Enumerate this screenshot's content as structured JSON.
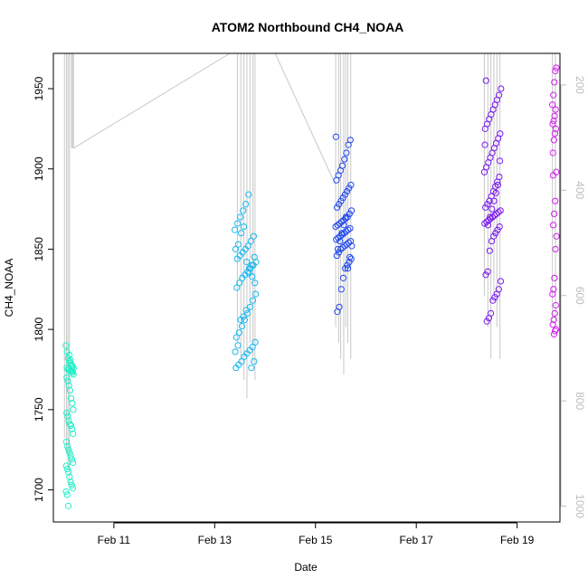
{
  "chart_data": {
    "type": "scatter",
    "title": "ATOM2 Northbound CH4_NOAA",
    "xlabel": "Date",
    "ylabel": "CH4_NOAA",
    "x_units": "days since Feb 10",
    "xlim": [
      9.8,
      19.85
    ],
    "ylim": [
      1680,
      1972
    ],
    "right_axis_lim": [
      1030,
      140
    ],
    "x_ticks": [
      {
        "label": "Feb 11",
        "value": 11
      },
      {
        "label": "Feb 13",
        "value": 13
      },
      {
        "label": "Feb 15",
        "value": 15
      },
      {
        "label": "Feb 17",
        "value": 17
      },
      {
        "label": "Feb 19",
        "value": 19
      }
    ],
    "y_ticks": [
      1700,
      1750,
      1800,
      1850,
      1900,
      1950
    ],
    "right_ticks": [
      1000,
      800,
      600,
      400,
      200
    ],
    "right_axis_color": "#bdbdbd",
    "grid": false,
    "legend": "none",
    "altitude_line_color": "#c8c8c8",
    "series": [
      {
        "color": "#1ef0c8",
        "x_range": [
          10.05,
          10.2
        ],
        "values": [
          1790,
          1786,
          1782,
          1780,
          1779,
          1778,
          1777,
          1776,
          1776,
          1775,
          1775,
          1774,
          1774,
          1773,
          1772,
          1770,
          1768,
          1765,
          1762,
          1757,
          1754,
          1750,
          1748,
          1746,
          1743,
          1741,
          1740,
          1738,
          1735,
          1730,
          1727,
          1725,
          1723,
          1721,
          1719,
          1717,
          1715,
          1713,
          1711,
          1708,
          1705,
          1703,
          1701,
          1699,
          1697,
          1690,
          1784,
          1781,
          1777,
          1774
        ]
      },
      {
        "color": "#18b8f0",
        "x_range": [
          13.4,
          13.82
        ],
        "values": [
          1776,
          1778,
          1780,
          1783,
          1785,
          1787,
          1789,
          1792,
          1795,
          1798,
          1802,
          1806,
          1810,
          1814,
          1818,
          1822,
          1826,
          1829,
          1832,
          1834,
          1836,
          1838,
          1840,
          1842,
          1844,
          1846,
          1848,
          1850,
          1852,
          1855,
          1858,
          1862,
          1866,
          1870,
          1874,
          1878,
          1884,
          1776,
          1780,
          1786,
          1790,
          1806,
          1808,
          1812,
          1835,
          1840,
          1845,
          1850,
          1853,
          1860,
          1864,
          1842,
          1838,
          1833,
          1829
        ]
      },
      {
        "color": "#2048f0",
        "x_range": [
          15.4,
          15.72
        ],
        "values": [
          1811,
          1814,
          1825,
          1832,
          1838,
          1840,
          1842,
          1844,
          1846,
          1848,
          1850,
          1851,
          1852,
          1853,
          1854,
          1855,
          1856,
          1857,
          1858,
          1859,
          1860,
          1861,
          1862,
          1863,
          1864,
          1865,
          1866,
          1867,
          1868,
          1869,
          1870,
          1872,
          1874,
          1876,
          1878,
          1880,
          1882,
          1884,
          1886,
          1888,
          1890,
          1893,
          1896,
          1899,
          1902,
          1906,
          1910,
          1915,
          1918,
          1920,
          1850,
          1855,
          1860,
          1865,
          1870,
          1838,
          1845,
          1852
        ]
      },
      {
        "color": "#7a18f0",
        "x_range": [
          18.35,
          18.68
        ],
        "values": [
          1805,
          1807,
          1810,
          1818,
          1820,
          1822,
          1825,
          1830,
          1834,
          1836,
          1849,
          1855,
          1858,
          1860,
          1862,
          1864,
          1866,
          1867,
          1868,
          1869,
          1870,
          1871,
          1872,
          1873,
          1874,
          1876,
          1878,
          1880,
          1883,
          1886,
          1889,
          1892,
          1895,
          1898,
          1901,
          1904,
          1907,
          1910,
          1913,
          1916,
          1919,
          1922,
          1925,
          1928,
          1931,
          1934,
          1937,
          1940,
          1943,
          1946,
          1950,
          1955,
          1865,
          1870,
          1875,
          1880,
          1885,
          1890,
          1905,
          1915
        ]
      },
      {
        "color": "#d41ef0",
        "x_range": [
          19.7,
          19.78
        ],
        "values": [
          1797,
          1799,
          1800,
          1803,
          1806,
          1810,
          1815,
          1822,
          1825,
          1832,
          1850,
          1858,
          1865,
          1872,
          1880,
          1898,
          1910,
          1918,
          1922,
          1925,
          1928,
          1930,
          1933,
          1937,
          1940,
          1946,
          1954,
          1961,
          1963,
          1896
        ]
      }
    ]
  }
}
